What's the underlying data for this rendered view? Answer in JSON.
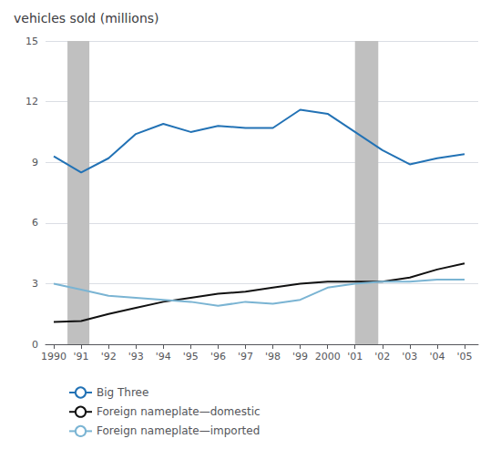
{
  "chart_data": {
    "type": "line",
    "title": "vehicles sold (millions)",
    "x": [
      1990,
      1991,
      1992,
      1993,
      1994,
      1995,
      1996,
      1997,
      1998,
      1999,
      2000,
      2001,
      2002,
      2003,
      2004,
      2005
    ],
    "series": [
      {
        "name": "Big Three",
        "color": "#2272b5",
        "values": [
          9.3,
          8.5,
          9.2,
          10.4,
          10.9,
          10.5,
          10.8,
          10.7,
          10.7,
          11.6,
          11.4,
          10.5,
          9.6,
          8.9,
          9.2,
          9.4
        ]
      },
      {
        "name": "Foreign nameplate—domestic",
        "color": "#111111",
        "values": [
          1.1,
          1.15,
          1.5,
          1.8,
          2.1,
          2.3,
          2.5,
          2.6,
          2.8,
          3.0,
          3.1,
          3.1,
          3.1,
          3.3,
          3.7,
          4.0
        ]
      },
      {
        "name": "Foreign nameplate—imported",
        "color": "#7ab4d3",
        "values": [
          3.0,
          2.7,
          2.4,
          2.3,
          2.2,
          2.1,
          1.9,
          2.1,
          2.0,
          2.2,
          2.8,
          3.0,
          3.1,
          3.1,
          3.2,
          3.2
        ]
      }
    ],
    "bands": [
      {
        "start": 1990.5,
        "end": 1991.3,
        "color": "#c0c0c0"
      },
      {
        "start": 2001.0,
        "end": 2001.85,
        "color": "#c0c0c0"
      }
    ],
    "xlim": [
      1989.7,
      2005.5
    ],
    "xticks": [
      1990,
      {
        "value": 1991,
        "label": "'91"
      },
      {
        "value": 1992,
        "label": "'92"
      },
      {
        "value": 1993,
        "label": "'93"
      },
      {
        "value": 1994,
        "label": "'94"
      },
      {
        "value": 1995,
        "label": "'95"
      },
      {
        "value": 1996,
        "label": "'96"
      },
      {
        "value": 1997,
        "label": "'97"
      },
      {
        "value": 1998,
        "label": "'98"
      },
      {
        "value": 1999,
        "label": "'99"
      },
      2000,
      {
        "value": 2001,
        "label": "'01"
      },
      {
        "value": 2002,
        "label": "'02"
      },
      {
        "value": 2003,
        "label": "'03"
      },
      {
        "value": 2004,
        "label": "'04"
      },
      {
        "value": 2005,
        "label": "'05"
      }
    ],
    "ylim": [
      0,
      15
    ],
    "yticks": [
      0,
      3,
      6,
      9,
      12,
      15
    ],
    "grid": true,
    "legend": "bottom"
  }
}
